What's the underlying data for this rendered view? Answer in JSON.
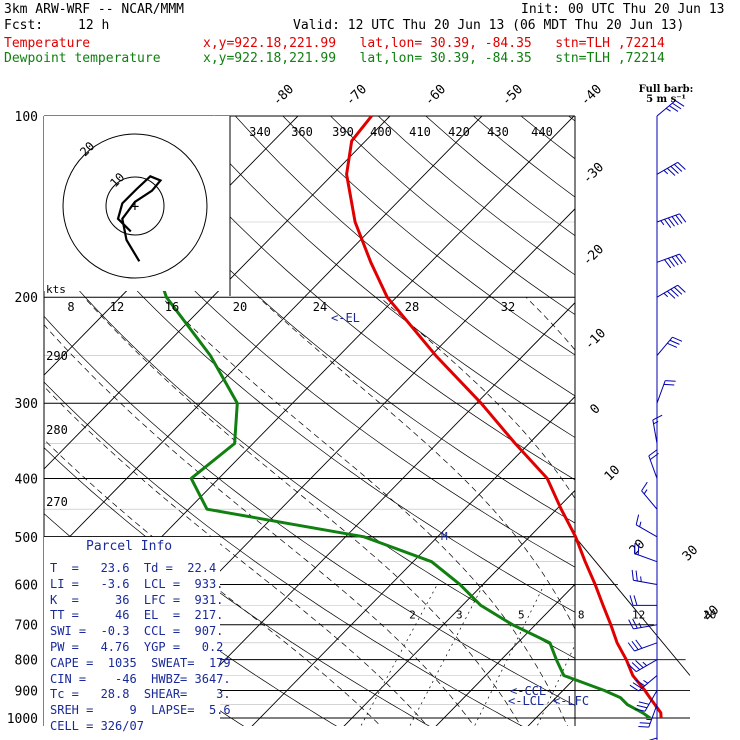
{
  "header": {
    "model": "3km ARW-WRF -- NCAR/MMM",
    "init": "Init: 00 UTC Thu 20 Jun 13",
    "fcst_label": "Fcst:",
    "fcst_value": "12 h",
    "valid": "Valid: 12 UTC Thu 20 Jun 13 (06 MDT Thu 20 Jun 13)",
    "temp_label": "Temperature",
    "dew_label": "Dewpoint temperature",
    "loc_temp": "x,y=922.18,221.99   lat,lon= 30.39, -84.35   stn=TLH ,72214",
    "loc_dew": "x,y=922.18,221.99   lat,lon= 30.39, -84.35   stn=TLH ,72214"
  },
  "hodograph": {
    "ring_labels": [
      "20",
      "10"
    ],
    "units": "kts"
  },
  "wind_legend": {
    "line1": "Full barb:",
    "line2": "5 m s⁻¹"
  },
  "parcel_info": {
    "title": "Parcel Info",
    "rows": [
      "T  =   23.6  Td =  22.4",
      "LI =   -3.6  LCL =  933.",
      "K  =     36  LFC =  931.",
      "TT =     46  EL  =  217.",
      "SWI =  -0.3  CCL =  907.",
      "PW =   4.76  YGP =   0.2",
      "CAPE =  1035  SWEAT=  179",
      "CIN =    -46  HWBZ= 3647.",
      "Tc =   28.8  SHEAR=    3.",
      "SREH =     9  LAPSE=  5.6",
      "CELL = 326/07"
    ]
  },
  "levels": {
    "EL": "EL",
    "CCL": "CCL",
    "LCL": "LCL",
    "LFC": "LFC"
  },
  "chart_data": {
    "type": "line",
    "title": "",
    "ylabel": "",
    "xlabel": "",
    "pressure_ticks": [
      100,
      200,
      300,
      400,
      500,
      600,
      700,
      800,
      900,
      1000
    ],
    "isotherm_labels": [
      "-80",
      "-70",
      "-60",
      "-50",
      "-40",
      "-30",
      "-20",
      "-10",
      "0",
      "10",
      "20",
      "30",
      "40"
    ],
    "theta_labels": [
      "340",
      "360",
      "390",
      "400",
      "410",
      "420",
      "430",
      "440"
    ],
    "theta_side_labels": [
      "290",
      "280",
      "270"
    ],
    "wind_scale_labels": [
      "8",
      "12",
      "16",
      "20",
      "24",
      "28",
      "32"
    ],
    "mixing_ratio_labels": [
      "2",
      "3",
      "5",
      "8",
      "12",
      "20"
    ],
    "colors": {
      "temperature": "#e00000",
      "dewpoint": "#108010",
      "barbs": "#0000b0"
    },
    "series": [
      {
        "name": "Temperature",
        "points": [
          [
            1000,
            23.6
          ],
          [
            980,
            23.0
          ],
          [
            950,
            21.5
          ],
          [
            925,
            20.2
          ],
          [
            900,
            18.9
          ],
          [
            850,
            16.0
          ],
          [
            800,
            13.6
          ],
          [
            750,
            10.8
          ],
          [
            700,
            8.2
          ],
          [
            650,
            5.3
          ],
          [
            600,
            2.2
          ],
          [
            550,
            -1.3
          ],
          [
            500,
            -5.0
          ],
          [
            450,
            -9.5
          ],
          [
            400,
            -14.3
          ],
          [
            350,
            -21.5
          ],
          [
            300,
            -29.5
          ],
          [
            250,
            -39.5
          ],
          [
            200,
            -51.0
          ],
          [
            175,
            -56.5
          ],
          [
            150,
            -62.5
          ],
          [
            125,
            -68.5
          ],
          [
            110,
            -71.5
          ],
          [
            100,
            -72.0
          ]
        ]
      },
      {
        "name": "Dewpoint temperature",
        "points": [
          [
            1000,
            22.4
          ],
          [
            980,
            21.0
          ],
          [
            950,
            18.5
          ],
          [
            925,
            17.0
          ],
          [
            900,
            14.5
          ],
          [
            850,
            8.5
          ],
          [
            800,
            6.0
          ],
          [
            750,
            3.5
          ],
          [
            700,
            -2.5
          ],
          [
            650,
            -8.0
          ],
          [
            600,
            -12.5
          ],
          [
            550,
            -18.0
          ],
          [
            500,
            -28.0
          ],
          [
            450,
            -48.0
          ],
          [
            400,
            -53.0
          ],
          [
            350,
            -52.0
          ],
          [
            300,
            -56.0
          ],
          [
            250,
            -64.0
          ],
          [
            200,
            -75.0
          ],
          [
            175,
            -80.0
          ],
          [
            150,
            -86.0
          ],
          [
            125,
            -86.0
          ],
          [
            110,
            -88.0
          ],
          [
            100,
            -89.0
          ]
        ]
      }
    ],
    "hodograph_trace": [
      [
        0.5,
        -6.5
      ],
      [
        -1.0,
        -4.0
      ],
      [
        -1.5,
        -1.5
      ],
      [
        0.0,
        0.5
      ],
      [
        2.0,
        1.8
      ],
      [
        3.0,
        3.0
      ],
      [
        1.8,
        3.5
      ],
      [
        0.2,
        2.0
      ],
      [
        -1.5,
        0.3
      ],
      [
        -2.0,
        -1.5
      ],
      [
        -0.5,
        -3.0
      ]
    ],
    "winds": [
      [
        1000,
        4,
        180
      ],
      [
        950,
        5,
        200
      ],
      [
        900,
        6,
        210
      ],
      [
        850,
        7,
        230
      ],
      [
        800,
        7,
        240
      ],
      [
        750,
        6,
        250
      ],
      [
        700,
        5,
        260
      ],
      [
        650,
        4,
        270
      ],
      [
        600,
        5,
        280
      ],
      [
        550,
        4,
        290
      ],
      [
        500,
        3,
        300
      ],
      [
        450,
        3,
        320
      ],
      [
        400,
        4,
        340
      ],
      [
        350,
        3,
        350
      ],
      [
        300,
        4,
        20
      ],
      [
        250,
        6,
        40
      ],
      [
        200,
        9,
        60
      ],
      [
        175,
        10,
        70
      ],
      [
        150,
        11,
        70
      ],
      [
        125,
        9,
        60
      ],
      [
        100,
        7,
        50
      ]
    ]
  }
}
